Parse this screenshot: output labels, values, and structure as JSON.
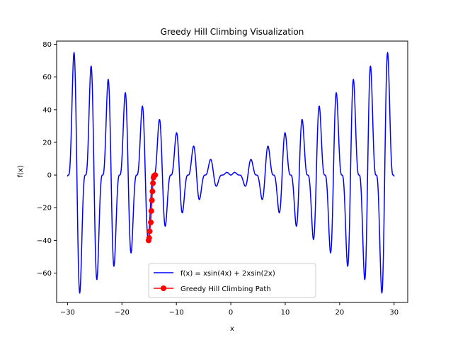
{
  "chart_data": {
    "type": "line",
    "title": "Greedy Hill Climbing Visualization",
    "xlabel": "x",
    "ylabel": "f(x)",
    "xlim": [
      -32,
      32.5
    ],
    "ylim": [
      -78,
      82
    ],
    "x_ticks": [
      -30,
      -20,
      -10,
      0,
      10,
      20,
      30
    ],
    "y_ticks": [
      -60,
      -40,
      -20,
      0,
      20,
      40,
      60,
      80
    ],
    "x_tick_labels": [
      "−30",
      "−20",
      "−10",
      "0",
      "10",
      "20",
      "30"
    ],
    "y_tick_labels": [
      "−60",
      "−40",
      "−20",
      "0",
      "20",
      "40",
      "60",
      "80"
    ],
    "grid": false,
    "legend_position": "lower center",
    "series": [
      {
        "name": "f(x) = xsin(4x) + 2xsin(2x)",
        "style": "line",
        "color": "#0000ff",
        "function": "x*sin(4x) + 2*x*sin(2x)",
        "x_range": [
          -30,
          30
        ]
      },
      {
        "name": "Greedy Hill Climbing Path",
        "style": "line-marker",
        "color": "#ff0000",
        "points": [
          {
            "x": -13.9,
            "y": 0
          },
          {
            "x": -14.1,
            "y": -0.5
          },
          {
            "x": -14.2,
            "y": -1.5
          },
          {
            "x": -14.3,
            "y": -5
          },
          {
            "x": -14.4,
            "y": -10
          },
          {
            "x": -14.5,
            "y": -15.5
          },
          {
            "x": -14.6,
            "y": -22
          },
          {
            "x": -14.7,
            "y": -29
          },
          {
            "x": -14.9,
            "y": -34.5
          },
          {
            "x": -15.0,
            "y": -38.5
          },
          {
            "x": -15.1,
            "y": -40
          }
        ]
      }
    ]
  }
}
